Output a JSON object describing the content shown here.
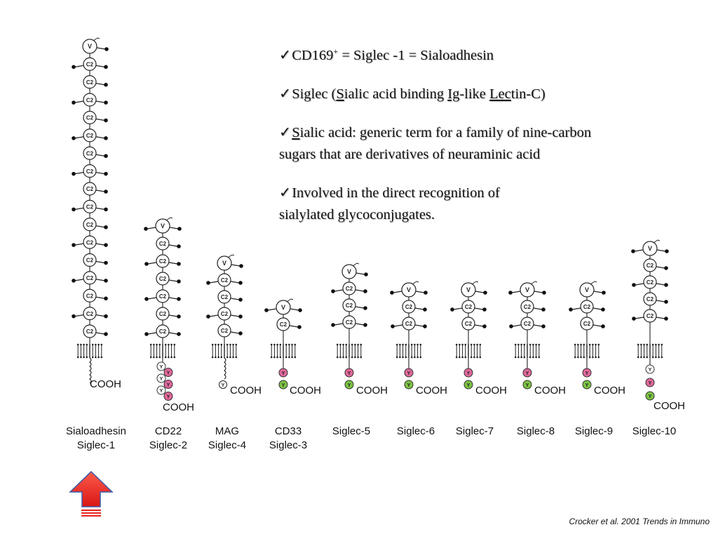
{
  "bullets": {
    "check": "✓",
    "b1": {
      "pre": "CD169",
      "sup": "+",
      "post": " = Siglec -1 = Sialoadhesin"
    },
    "b2": {
      "t1": "Siglec (",
      "u1": "S",
      "t2": "ialic acid binding ",
      "u2": "Ig",
      "t3": "-like ",
      "u3": "Lec",
      "t4": "tin-C)"
    },
    "b3": {
      "u1": "S",
      "line1": "ialic acid: generic term for a family of nine-carbon",
      "line2": "sugars that are derivatives of neuraminic acid"
    },
    "b4": {
      "line1": "Involved in the direct recognition of",
      "line2": "sialylated glycoconjugates."
    }
  },
  "domain_labels": {
    "v": "V",
    "c2": "C2",
    "y": "Y",
    "cooh": "COOH"
  },
  "siglecs": [
    {
      "name": "Sialoadhesin",
      "alias": "Siglec-1",
      "c2_domains": 16,
      "cooh_tail": "long"
    },
    {
      "name": "CD22",
      "alias": "Siglec-2",
      "c2_domains": 6,
      "itim_motifs": 6
    },
    {
      "name": "MAG",
      "alias": "Siglec-4",
      "c2_domains": 4,
      "itim_motifs": 1
    },
    {
      "name": "CD33",
      "alias": "Siglec-3",
      "c2_domains": 1,
      "itim_motifs": 2
    },
    {
      "name": "Siglec-5",
      "alias": "",
      "c2_domains": 3,
      "itim_motifs": 2
    },
    {
      "name": "Siglec-6",
      "alias": "",
      "c2_domains": 2,
      "itim_motifs": 2
    },
    {
      "name": "Siglec-7",
      "alias": "",
      "c2_domains": 2,
      "itim_motifs": 2
    },
    {
      "name": "Siglec-8",
      "alias": "",
      "c2_domains": 2,
      "itim_motifs": 2
    },
    {
      "name": "Siglec-9",
      "alias": "",
      "c2_domains": 2,
      "itim_motifs": 2
    },
    {
      "name": "Siglec-10",
      "alias": "",
      "c2_domains": 4,
      "itim_motifs": 3
    }
  ],
  "colors": {
    "itim": "#e0689a",
    "itim_like": "#7cc243",
    "arrow": "#e8211f"
  },
  "highlight_arrow": {
    "target": "Sialoadhesin",
    "icon": "up-arrow-icon"
  },
  "citation": "Crocker et al. 2001 Trends in Immuno"
}
